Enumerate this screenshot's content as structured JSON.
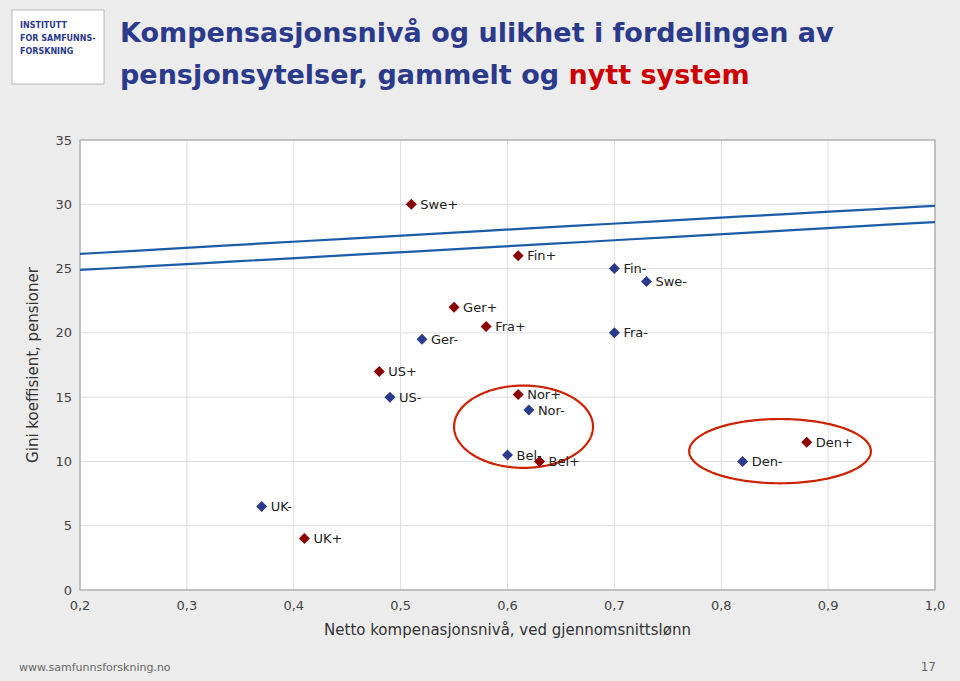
{
  "chart_data": {
    "type": "scatter",
    "title": "Kompensasjonsnivå og ulikhet i fordelingen av",
    "subtitle": "pensjonsytelser, gammelt og ",
    "subtitle_highlight": "nytt system",
    "highlight_color": "#cc0000",
    "title_color": "#2b3a8b",
    "x_label": "Netto kompenasjonsnivå, ved gjennomsnittslønn",
    "y_label": "Gini koeffisient, pensioner",
    "xlim": [
      0.2,
      1.0
    ],
    "ylim": [
      0,
      35
    ],
    "xticks": [
      {
        "value": 0.2,
        "label": "0,2"
      },
      {
        "value": 0.3,
        "label": "0,3"
      },
      {
        "value": 0.4,
        "label": "0,4"
      },
      {
        "value": 0.5,
        "label": "0,5"
      },
      {
        "value": 0.6,
        "label": "0,6"
      },
      {
        "value": 0.7,
        "label": "0,7"
      },
      {
        "value": 0.8,
        "label": "0,8"
      },
      {
        "value": 0.9,
        "label": "0,9"
      },
      {
        "value": 1.0,
        "label": "1,0"
      }
    ],
    "yticks": [
      0,
      5,
      10,
      15,
      20,
      25,
      30,
      35
    ],
    "grid": true,
    "marker": "diamond",
    "labels": [
      "Swe+",
      "Fin+",
      "Fin-",
      "Swe-",
      "Ger+",
      "Fra+",
      "Ger-",
      "Fra-",
      "US+",
      "US-",
      "Nor+",
      "Nor-",
      "Bel-",
      "Bel+",
      "Den+",
      "Den-",
      "UK-",
      "UK+"
    ],
    "x": [
      0.51,
      0.61,
      0.7,
      0.73,
      0.55,
      0.58,
      0.52,
      0.7,
      0.48,
      0.49,
      0.61,
      0.62,
      0.6,
      0.63,
      0.88,
      0.82,
      0.37,
      0.41
    ],
    "values": [
      30.0,
      26.0,
      25.0,
      24.0,
      22.0,
      20.5,
      19.5,
      20.0,
      17.0,
      15.0,
      15.2,
      14.0,
      10.5,
      10.0,
      11.5,
      10.0,
      6.5,
      4.0
    ],
    "colors": [
      "#8B0000",
      "#8B0000",
      "#2b3a8b",
      "#2b3a8b",
      "#8B0000",
      "#8B0000",
      "#2b3a8b",
      "#2b3a8b",
      "#8B0000",
      "#2b3a8b",
      "#8B0000",
      "#2b3a8b",
      "#2b3a8b",
      "#8B0000",
      "#8B0000",
      "#2b3a8b",
      "#2b3a8b",
      "#8B0000"
    ],
    "ellipses": [
      {
        "cx": 0.625,
        "cy": 27.5,
        "rx": 0.135,
        "ry": 7.5,
        "angle": -12,
        "color": "#1a5ca8"
      },
      {
        "cx": 0.615,
        "cy": 12.7,
        "rx": 0.065,
        "ry": 3.2,
        "angle": 0,
        "color": "#cc2200"
      },
      {
        "cx": 0.855,
        "cy": 10.8,
        "rx": 0.085,
        "ry": 2.5,
        "angle": 0,
        "color": "#cc2200"
      }
    ],
    "logo_text": [
      "INSTITUTT",
      "FOR SAMFUNNS-",
      "FORSKNING"
    ],
    "annotations": [
      "www.samfunnsforskning.no",
      "17"
    ]
  }
}
